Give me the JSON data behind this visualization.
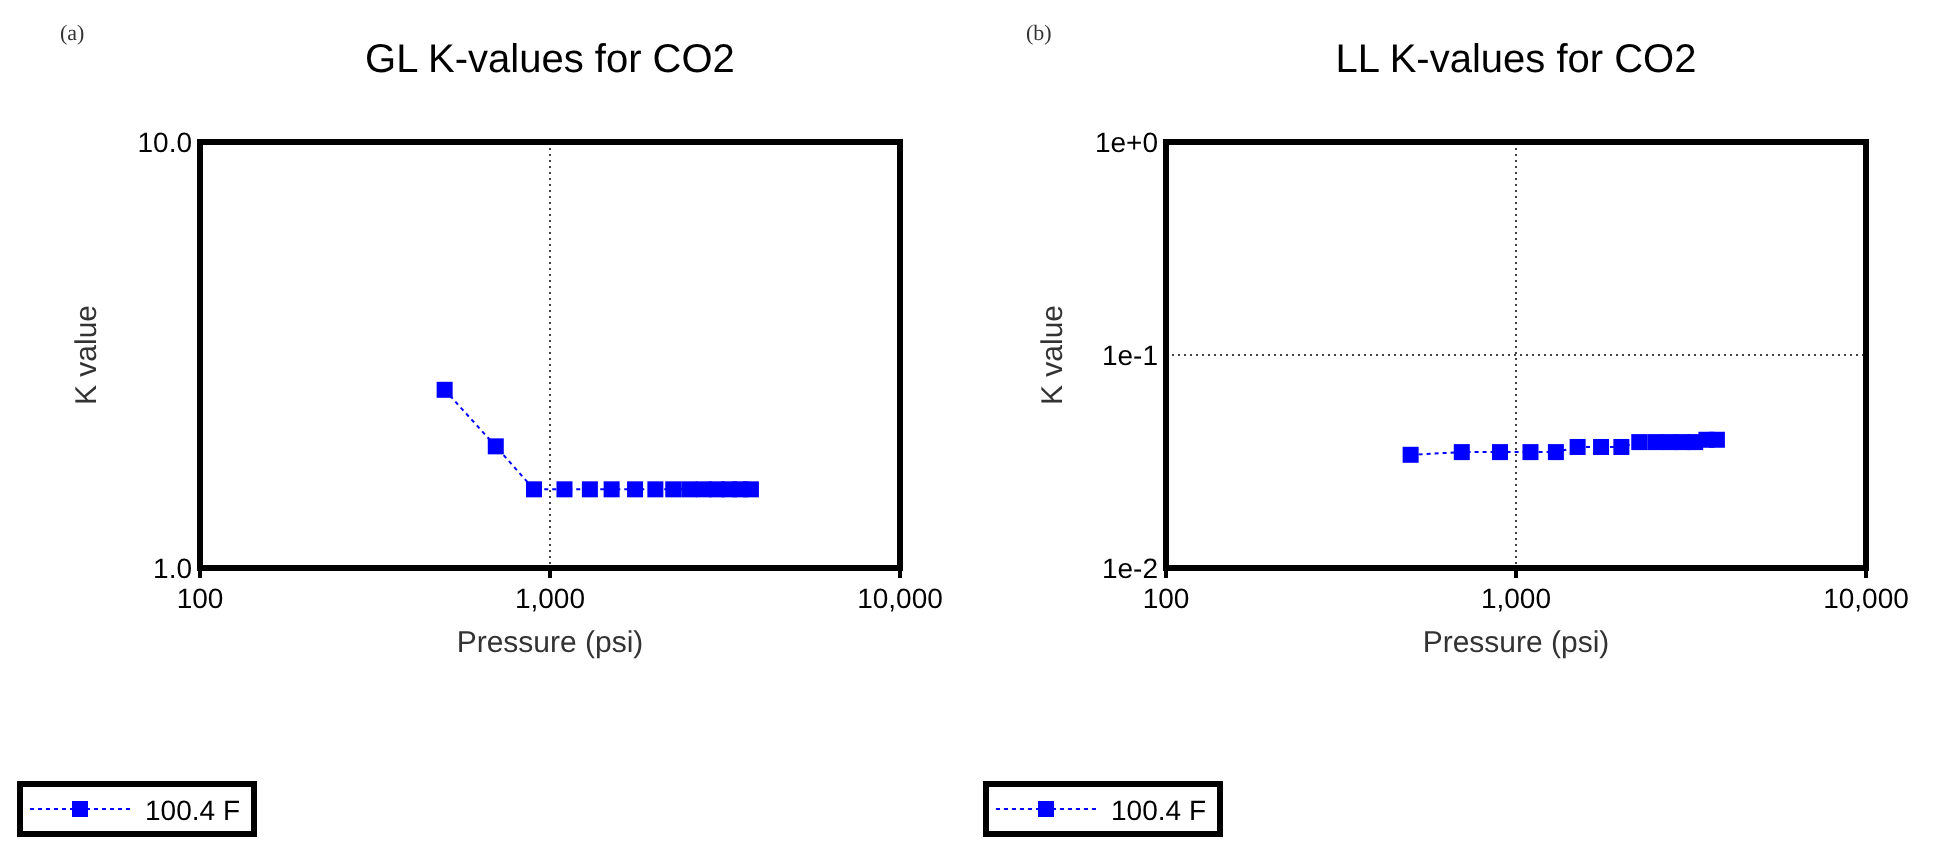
{
  "chart_data": [
    {
      "type": "line",
      "title": "GL K-values for CO2",
      "xlabel": "Pressure (psi)",
      "ylabel": "K value",
      "annotations": [
        "(a)"
      ],
      "log": "xy",
      "xlim": [
        100,
        10000
      ],
      "ylim": [
        1,
        10
      ],
      "xticks": [
        {
          "value": 100,
          "label": "100"
        },
        {
          "value": 1000,
          "label": "1,000"
        },
        {
          "value": 10000,
          "label": "10,000"
        }
      ],
      "yticks": [
        {
          "value": 1,
          "label": "1.0"
        },
        {
          "value": 10,
          "label": "10.0"
        }
      ],
      "grid": true,
      "legend": "bottom",
      "marker": "square",
      "line_style": "dotted",
      "x": [
        500,
        700,
        900,
        1100,
        1300,
        1500,
        1750,
        2000,
        2250,
        2500,
        2750,
        3000,
        3250,
        3500,
        3750
      ],
      "series": [
        {
          "name": "100.4 F",
          "color": "#0000ff",
          "values": [
            2.62,
            1.93,
            1.53,
            1.53,
            1.53,
            1.53,
            1.53,
            1.53,
            1.53,
            1.53,
            1.53,
            1.53,
            1.53,
            1.53,
            1.53
          ]
        }
      ]
    },
    {
      "type": "line",
      "title": "LL K-values for CO2",
      "xlabel": "Pressure (psi)",
      "ylabel": "K value",
      "annotations": [
        "(b)"
      ],
      "log": "xy",
      "xlim": [
        100,
        10000
      ],
      "ylim": [
        0.01,
        1
      ],
      "xticks": [
        {
          "value": 100,
          "label": "100"
        },
        {
          "value": 1000,
          "label": "1,000"
        },
        {
          "value": 10000,
          "label": "10,000"
        }
      ],
      "yticks": [
        {
          "value": 0.01,
          "label": "1e-2"
        },
        {
          "value": 0.1,
          "label": "1e-1"
        },
        {
          "value": 1,
          "label": "1e+0"
        }
      ],
      "grid": true,
      "legend": "bottom",
      "marker": "square",
      "line_style": "dotted",
      "x": [
        500,
        700,
        900,
        1100,
        1300,
        1500,
        1750,
        2000,
        2250,
        2500,
        2750,
        3000,
        3250,
        3500,
        3750
      ],
      "series": [
        {
          "name": "100.4 F",
          "color": "#0000ff",
          "values": [
            0.034,
            0.035,
            0.035,
            0.035,
            0.035,
            0.037,
            0.037,
            0.037,
            0.039,
            0.039,
            0.039,
            0.039,
            0.039,
            0.04,
            0.04
          ]
        }
      ]
    }
  ]
}
